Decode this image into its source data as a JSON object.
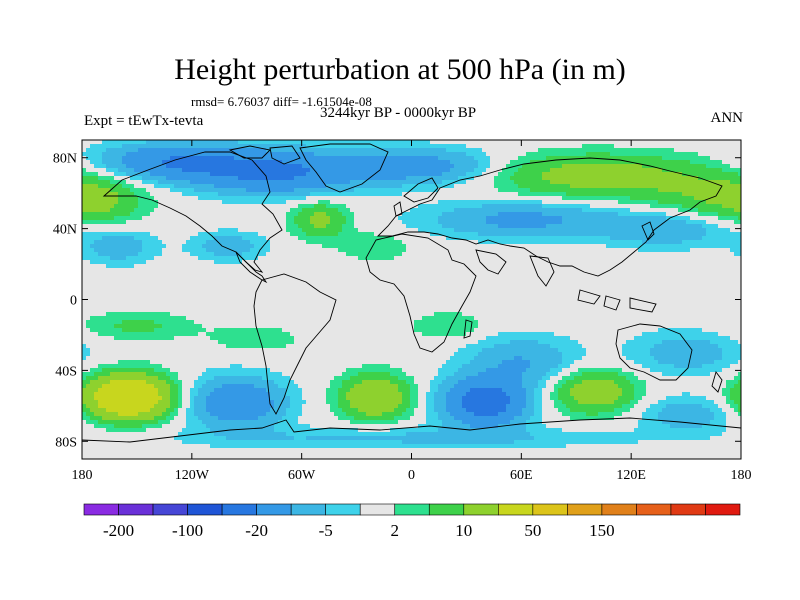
{
  "title": "Height perturbation at 500 hPa (in m)",
  "stats": "rmsd= 6.76037 diff= -1.61504e-08",
  "experiment": "Expt = tEwTx-tevta",
  "period": "3244kyr BP - 0000kyr BP",
  "season": "ANN",
  "axes": {
    "x_ticks": [
      "180",
      "120W",
      "60W",
      "0",
      "60E",
      "120E",
      "180"
    ],
    "y_ticks": [
      "80N",
      "40N",
      "0",
      "40S",
      "80S"
    ],
    "lon_range": [
      -180,
      180
    ],
    "lat_range": [
      -90,
      90
    ]
  },
  "colorbar": {
    "colors": [
      "#8a2be2",
      "#6a30d8",
      "#4646d6",
      "#1f55d6",
      "#2777e0",
      "#3499e6",
      "#3cb6e4",
      "#3ed2ea",
      "#e6e6e6",
      "#2ee08f",
      "#3ed14a",
      "#8ed12e",
      "#c8d61e",
      "#dcc41a",
      "#e0a01a",
      "#e0801a",
      "#e6601a",
      "#e03a14",
      "#e01a10"
    ],
    "labels": [
      "-200",
      "-100",
      "-20",
      "-5",
      "2",
      "10",
      "50",
      "150"
    ]
  },
  "field_anomalies": [
    {
      "lon": -130,
      "lat": 78,
      "amp": -18,
      "slon": 40,
      "slat": 10
    },
    {
      "lon": -75,
      "lat": 72,
      "amp": -22,
      "slon": 45,
      "slat": 12
    },
    {
      "lon": 5,
      "lat": 75,
      "amp": -14,
      "slon": 40,
      "slat": 10
    },
    {
      "lon": 100,
      "lat": 70,
      "amp": 14,
      "slon": 55,
      "slat": 12
    },
    {
      "lon": 170,
      "lat": 58,
      "amp": 10,
      "slon": 40,
      "slat": 15
    },
    {
      "lon": -170,
      "lat": 55,
      "amp": 6,
      "slon": 20,
      "slat": 12
    },
    {
      "lon": -50,
      "lat": 45,
      "amp": 12,
      "slon": 15,
      "slat": 10
    },
    {
      "lon": 60,
      "lat": 45,
      "amp": -12,
      "slon": 50,
      "slat": 10
    },
    {
      "lon": 140,
      "lat": 40,
      "amp": -10,
      "slon": 35,
      "slat": 10
    },
    {
      "lon": -160,
      "lat": 30,
      "amp": -8,
      "slon": 20,
      "slat": 10
    },
    {
      "lon": -100,
      "lat": 30,
      "amp": -8,
      "slon": 20,
      "slat": 8
    },
    {
      "lon": -20,
      "lat": 30,
      "amp": 5,
      "slon": 20,
      "slat": 8
    },
    {
      "lon": -150,
      "lat": -15,
      "amp": 6,
      "slon": 30,
      "slat": 8
    },
    {
      "lon": -85,
      "lat": -22,
      "amp": 4,
      "slon": 25,
      "slat": 8
    },
    {
      "lon": 20,
      "lat": -15,
      "amp": 5,
      "slon": 20,
      "slat": 8
    },
    {
      "lon": 60,
      "lat": -35,
      "amp": -10,
      "slon": 30,
      "slat": 14
    },
    {
      "lon": 150,
      "lat": -30,
      "amp": -8,
      "slon": 30,
      "slat": 12
    },
    {
      "lon": -155,
      "lat": -55,
      "amp": 40,
      "slon": 22,
      "slat": 12
    },
    {
      "lon": -95,
      "lat": -58,
      "amp": -18,
      "slon": 25,
      "slat": 14
    },
    {
      "lon": -20,
      "lat": -55,
      "amp": 20,
      "slon": 18,
      "slat": 12
    },
    {
      "lon": 40,
      "lat": -58,
      "amp": -28,
      "slon": 22,
      "slat": 13
    },
    {
      "lon": 100,
      "lat": -52,
      "amp": 16,
      "slon": 22,
      "slat": 12
    },
    {
      "lon": 150,
      "lat": -65,
      "amp": -8,
      "slon": 25,
      "slat": 10
    },
    {
      "lon": 0,
      "lat": -78,
      "amp": -6,
      "slon": 120,
      "slat": 6
    }
  ]
}
